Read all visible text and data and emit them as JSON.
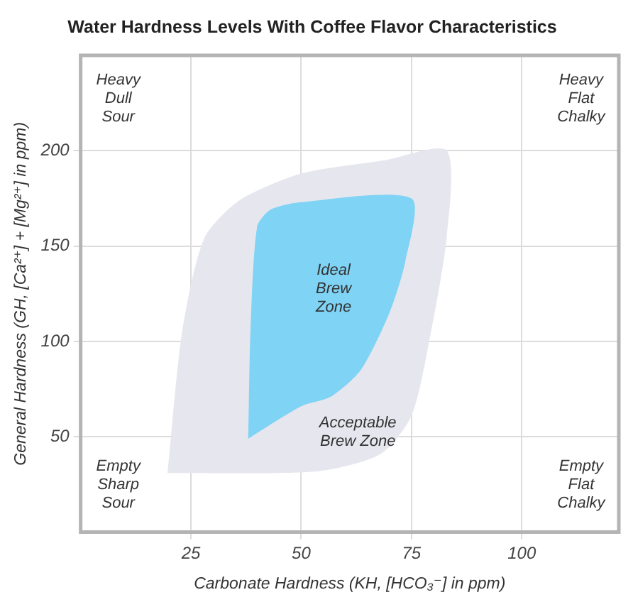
{
  "chart_data": {
    "type": "area",
    "title": "Water Hardness Levels With Coffee Flavor Characteristics",
    "xlabel": "Carbonate Hardness (KH, [HCO₃⁻] in ppm)",
    "ylabel": "General Hardness (GH, [Ca²⁺] + [Mg²⁺] in ppm)",
    "xlim": [
      0,
      122
    ],
    "ylim": [
      0,
      250
    ],
    "xticks": [
      25,
      50,
      75,
      100
    ],
    "yticks": [
      50,
      100,
      150,
      200
    ],
    "grid": true,
    "legend": false,
    "series": [
      {
        "color": "#e6e6ee",
        "x": [
          19.7,
          23,
          28,
          36,
          50,
          69,
          83,
          83,
          79,
          75,
          68,
          54,
          19.7
        ],
        "values": [
          31,
          105,
          154,
          174,
          188,
          195,
          200,
          155,
          100,
          61,
          41,
          32,
          31
        ]
      },
      {
        "color": "#7fd3f5",
        "x": [
          38,
          38.5,
          40,
          43,
          50,
          75,
          73.6,
          70,
          63.5,
          56.7,
          50,
          38
        ],
        "values": [
          49,
          105,
          160,
          169,
          173,
          175,
          142,
          115,
          85,
          71,
          66,
          49
        ]
      }
    ],
    "annotations": [
      "Heavy\nDull\nSour",
      "Heavy\nFlat\nChalky",
      "Empty\nSharp\nSour",
      "Empty\nFlat\nChalky",
      "Ideal\nBrew\nZone",
      "Acceptable\nBrew Zone"
    ]
  }
}
